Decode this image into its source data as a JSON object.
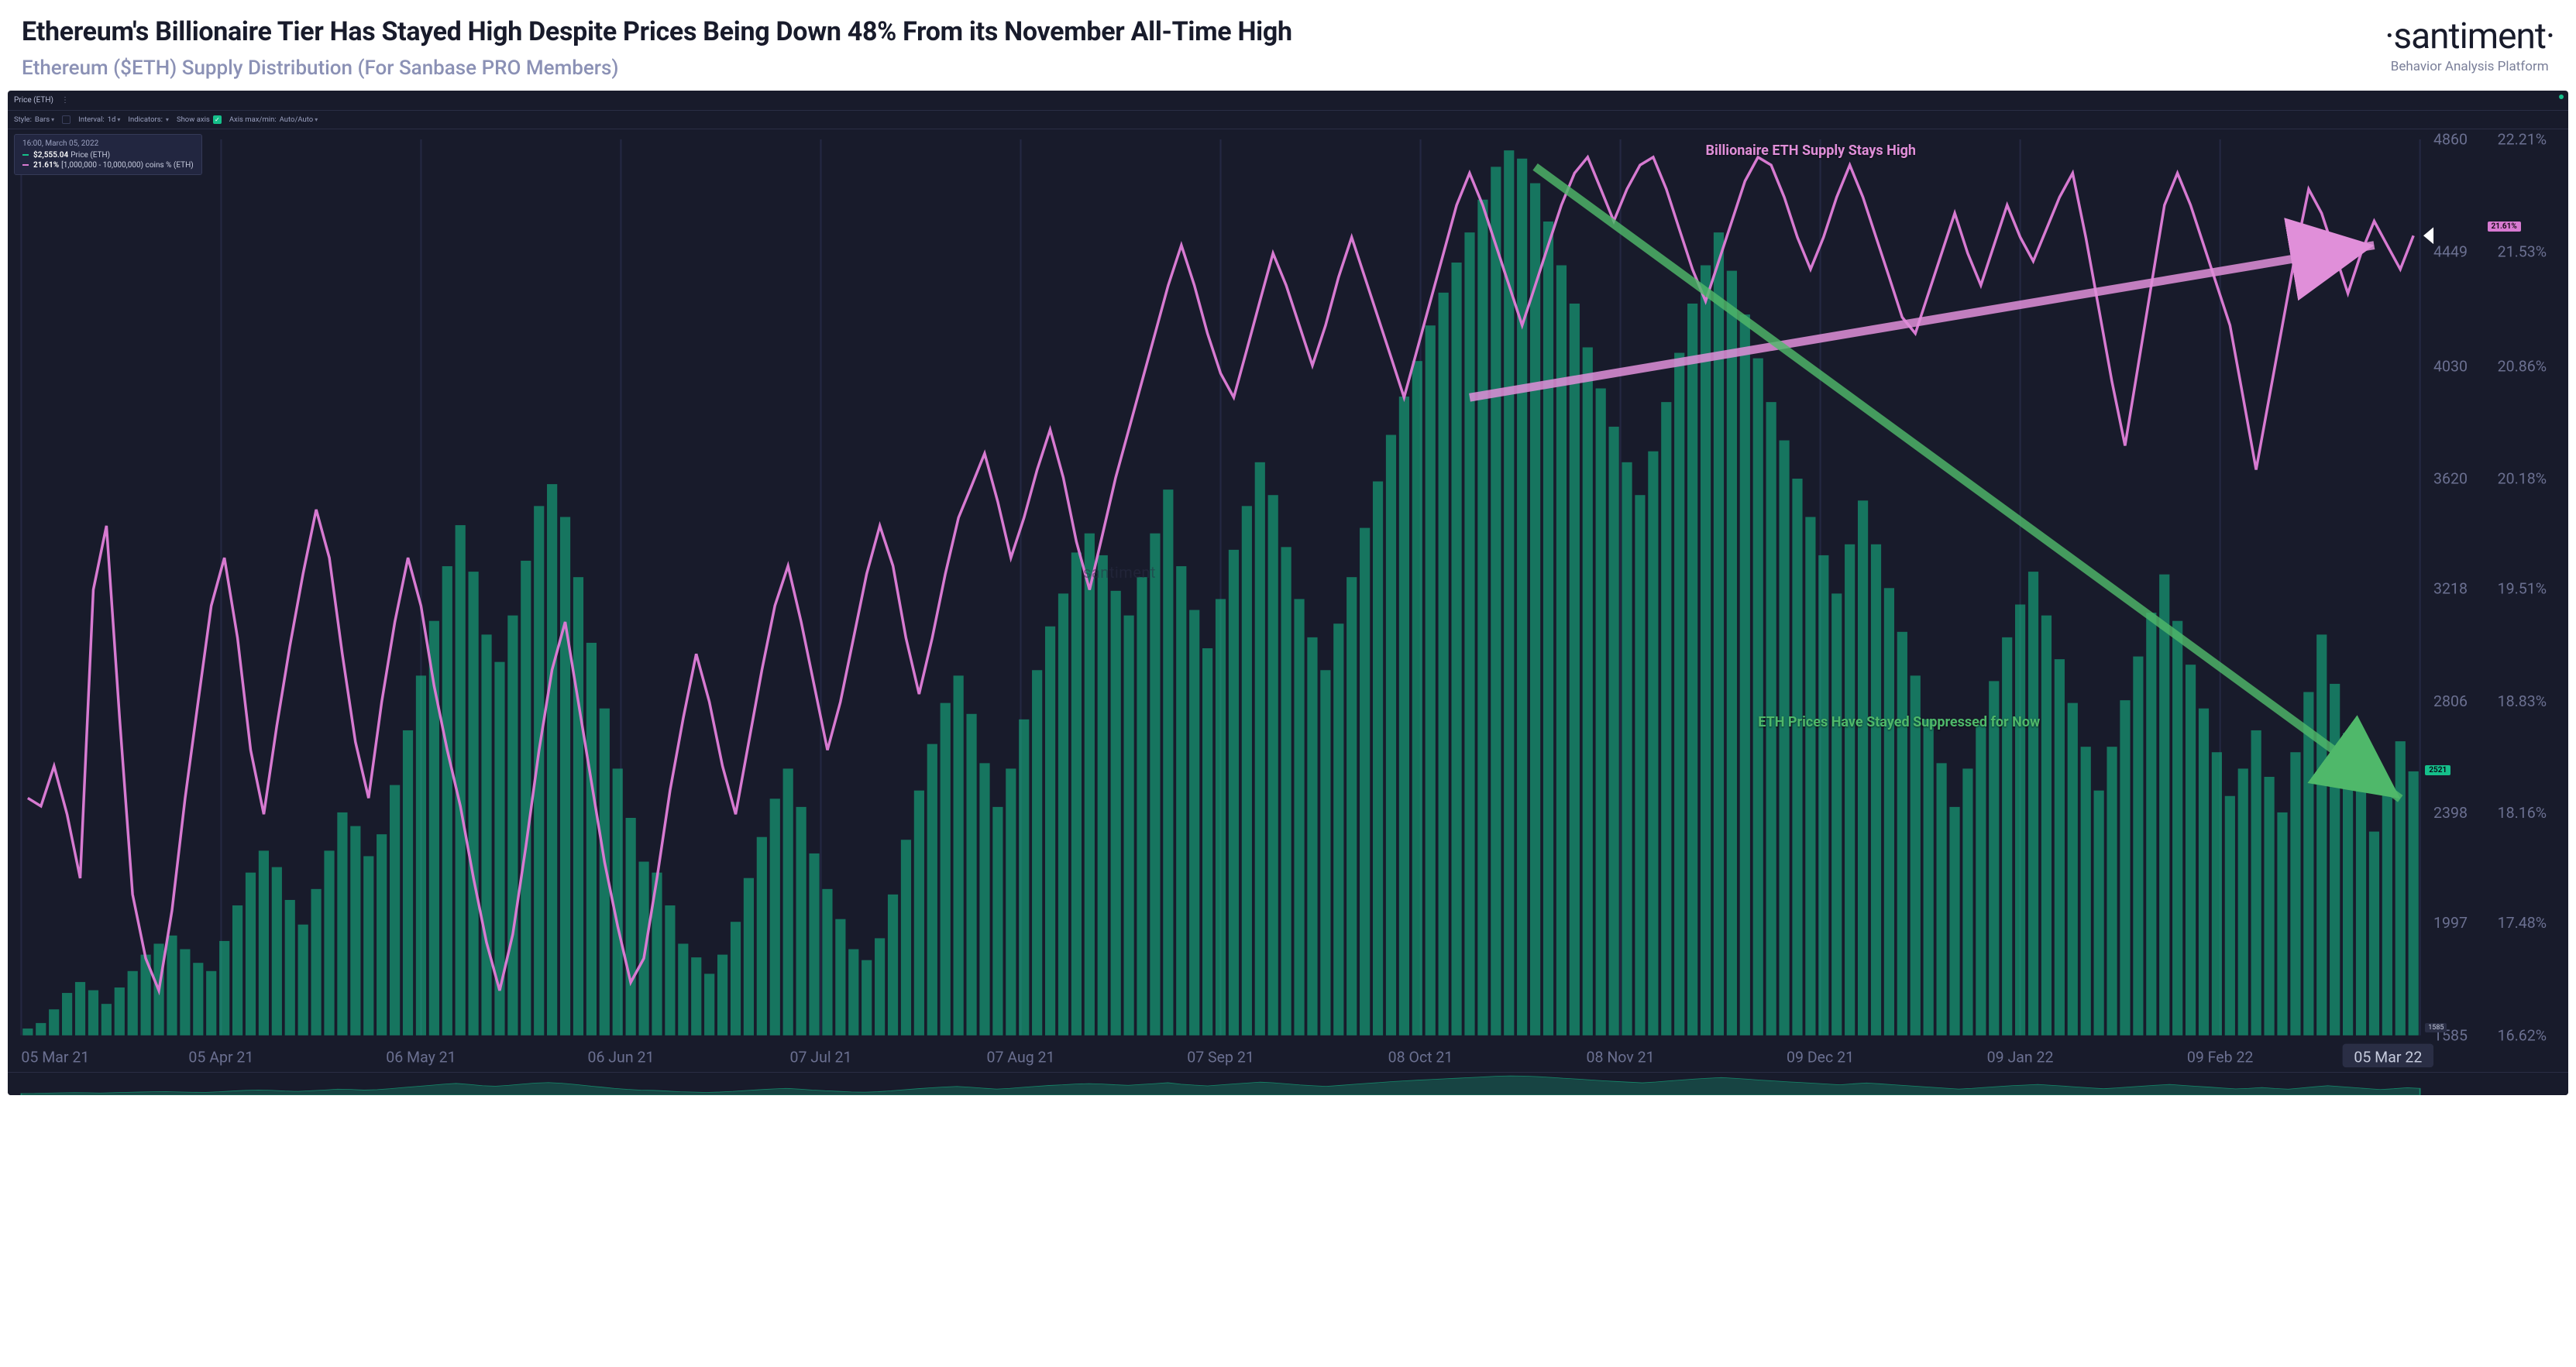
{
  "header": {
    "title": "Ethereum's Billionaire Tier Has Stayed High Despite Prices Being Down 48% From its November All-Time High",
    "subtitle": "Ethereum ($ETH) Supply Distribution (For Sanbase PRO Members)"
  },
  "brand": {
    "logo": "·santiment·",
    "tagline": "Behavior Analysis Platform"
  },
  "topbar": {
    "label": "Price (ETH)"
  },
  "toolbar": {
    "style_label": "Style:",
    "style_value": "Bars",
    "interval_label": "Interval:",
    "interval_value": "1d",
    "indicators": "Indicators:",
    "show_axis": "Show axis",
    "axis_label": "Axis max/min:",
    "axis_value": "Auto/Auto"
  },
  "tooltip": {
    "time": "16:00, March 05, 2022",
    "price_value": "$2,555.04",
    "price_label": "Price (ETH)",
    "pct_value": "21.61%",
    "pct_label": "[1,000,000 - 10,000,000) coins % (ETH)"
  },
  "annotations": {
    "top": "Billionaire ETH Supply Stays High",
    "bottom": "ETH Prices Have Stayed Suppressed for Now"
  },
  "watermark": "santiment",
  "chart": {
    "type": "bar+line",
    "background_color": "#181b2b",
    "grid_color": "#242842",
    "bar_color": "#15bf8a",
    "bar_opacity": 0.55,
    "line_color": "#d77ad1",
    "line_width": 1.6,
    "arrow_pink": "#e08fd9",
    "arrow_green": "#4fb86a",
    "x_labels": [
      "05 Mar 21",
      "05 Apr 21",
      "06 May 21",
      "06 Jun 21",
      "07 Jul 21",
      "07 Aug 21",
      "07 Sep 21",
      "08 Oct 21",
      "08 Nov 21",
      "09 Dec 21",
      "09 Jan 22",
      "09 Feb 22",
      "05 Mar 22"
    ],
    "y1_label_color": "#7a7f99",
    "y1_ticks": [
      1585,
      1997,
      2398,
      2806,
      3218,
      3620,
      4030,
      4449,
      4860
    ],
    "y2_ticks": [
      "16.62%",
      "17.48%",
      "18.16%",
      "18.83%",
      "19.51%",
      "20.18%",
      "20.86%",
      "21.53%",
      "22.21%"
    ],
    "y1_current_tag": 2521,
    "y2_current_tag": "21.61%",
    "y1_min_tag": 1585,
    "last_x_tag": "05 Mar 22",
    "bars": [
      1610,
      1630,
      1680,
      1740,
      1780,
      1750,
      1700,
      1760,
      1820,
      1880,
      1920,
      1950,
      1900,
      1850,
      1820,
      1930,
      2060,
      2180,
      2260,
      2200,
      2080,
      1990,
      2120,
      2260,
      2400,
      2350,
      2240,
      2320,
      2500,
      2700,
      2900,
      3100,
      3300,
      3450,
      3280,
      3050,
      2950,
      3120,
      3320,
      3520,
      3600,
      3480,
      3260,
      3020,
      2780,
      2560,
      2380,
      2220,
      2180,
      2060,
      1920,
      1870,
      1810,
      1880,
      2000,
      2160,
      2310,
      2450,
      2560,
      2420,
      2250,
      2120,
      2010,
      1900,
      1860,
      1940,
      2100,
      2300,
      2480,
      2650,
      2800,
      2900,
      2760,
      2580,
      2420,
      2560,
      2740,
      2920,
      3080,
      3200,
      3350,
      3420,
      3340,
      3210,
      3120,
      3260,
      3420,
      3580,
      3300,
      3140,
      3000,
      3180,
      3360,
      3520,
      3680,
      3560,
      3370,
      3180,
      3040,
      2920,
      3090,
      3260,
      3440,
      3610,
      3780,
      3920,
      4050,
      4180,
      4300,
      4410,
      4520,
      4640,
      4760,
      4820,
      4790,
      4700,
      4560,
      4400,
      4260,
      4100,
      3950,
      3810,
      3680,
      3560,
      3720,
      3900,
      4080,
      4260,
      4400,
      4520,
      4380,
      4220,
      4060,
      3900,
      3760,
      3620,
      3480,
      3340,
      3200,
      3380,
      3540,
      3380,
      3220,
      3060,
      2900,
      2740,
      2580,
      2420,
      2560,
      2720,
      2880,
      3040,
      3160,
      3280,
      3120,
      2960,
      2800,
      2640,
      2480,
      2640,
      2810,
      2970,
      3130,
      3270,
      3100,
      2940,
      2780,
      2620,
      2460,
      2560,
      2700,
      2530,
      2400,
      2620,
      2840,
      3050,
      2870,
      2690,
      2510,
      2330,
      2480,
      2660,
      2550
    ],
    "line": [
      18.1,
      18.05,
      18.3,
      18.0,
      17.6,
      19.4,
      19.8,
      18.6,
      17.5,
      17.1,
      16.9,
      17.4,
      18.1,
      18.7,
      19.3,
      19.6,
      19.1,
      18.4,
      18.0,
      18.55,
      19.05,
      19.5,
      19.9,
      19.6,
      19.0,
      18.45,
      18.1,
      18.7,
      19.2,
      19.6,
      19.3,
      18.8,
      18.4,
      18.05,
      17.6,
      17.2,
      16.9,
      17.25,
      17.8,
      18.4,
      18.9,
      19.2,
      18.7,
      18.2,
      17.7,
      17.3,
      16.95,
      17.1,
      17.6,
      18.15,
      18.6,
      19.0,
      18.7,
      18.3,
      18.0,
      18.45,
      18.9,
      19.3,
      19.55,
      19.2,
      18.8,
      18.4,
      18.7,
      19.1,
      19.5,
      19.8,
      19.55,
      19.1,
      18.75,
      19.1,
      19.5,
      19.85,
      20.05,
      20.25,
      19.95,
      19.6,
      19.85,
      20.15,
      20.4,
      20.1,
      19.7,
      19.4,
      19.75,
      20.1,
      20.4,
      20.7,
      21.0,
      21.3,
      21.55,
      21.3,
      21.0,
      20.75,
      20.6,
      20.9,
      21.2,
      21.5,
      21.3,
      21.05,
      20.8,
      21.05,
      21.35,
      21.6,
      21.35,
      21.1,
      20.85,
      20.6,
      20.9,
      21.2,
      21.5,
      21.8,
      22.0,
      21.8,
      21.55,
      21.3,
      21.05,
      21.3,
      21.55,
      21.8,
      22.0,
      22.1,
      21.9,
      21.7,
      21.9,
      22.05,
      22.1,
      21.9,
      21.65,
      21.4,
      21.2,
      21.45,
      21.7,
      21.95,
      22.1,
      22.05,
      21.85,
      21.6,
      21.4,
      21.6,
      21.85,
      22.05,
      21.85,
      21.6,
      21.35,
      21.1,
      21.0,
      21.25,
      21.5,
      21.75,
      21.5,
      21.3,
      21.55,
      21.8,
      21.6,
      21.45,
      21.65,
      21.85,
      22.0,
      21.6,
      21.15,
      20.7,
      20.3,
      20.8,
      21.3,
      21.8,
      22.0,
      21.8,
      21.55,
      21.3,
      21.05,
      20.6,
      20.15,
      20.6,
      21.05,
      21.5,
      21.9,
      21.75,
      21.5,
      21.25,
      21.5,
      21.7,
      21.55,
      21.4,
      21.61
    ]
  }
}
